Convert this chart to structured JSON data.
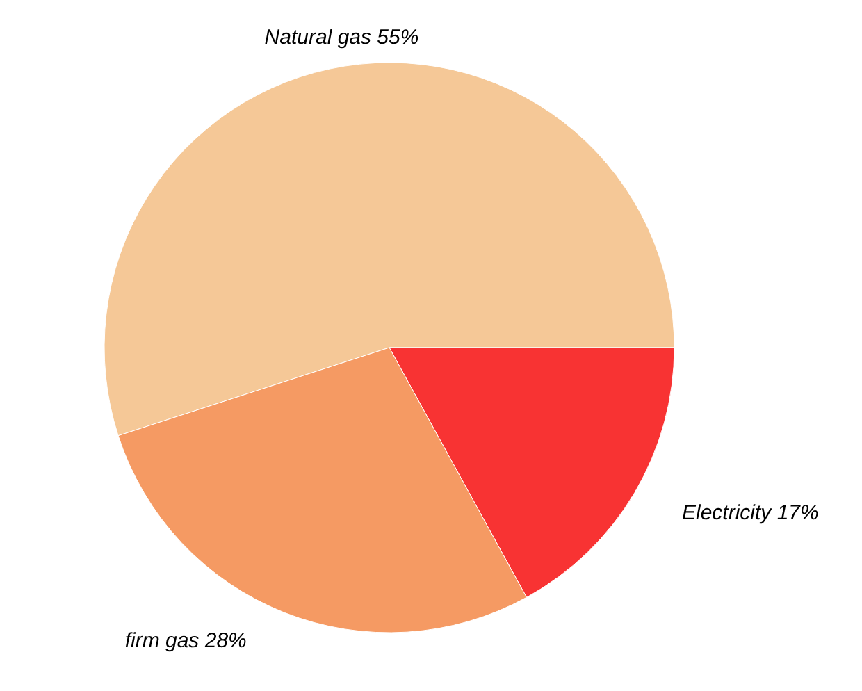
{
  "chart_data": {
    "type": "pie",
    "categories": [
      "Natural gas",
      "Electricity",
      "firm gas"
    ],
    "values": [
      55,
      17,
      28
    ],
    "colors": [
      "#f5c897",
      "#f83333",
      "#f59a63"
    ],
    "value_labels": [
      "55%",
      "17%",
      "28%"
    ]
  }
}
